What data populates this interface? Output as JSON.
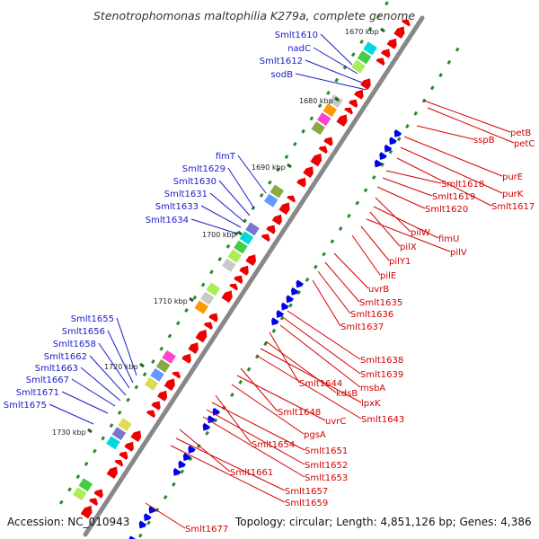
{
  "title": "Stenotrophomonas maltophilia K279a, complete genome",
  "footer": {
    "accession": "Accession: NC_010943",
    "topology": "Topology: circular; Length: 4,851,126 bp; Genes: 4,386"
  },
  "colors": {
    "forward_label": "#1a1acc",
    "reverse_label": "#d40000",
    "forward_gene": "#0000ee",
    "reverse_gene": "#ee0000",
    "backbone": "#888888",
    "tick": "#2a8a2a"
  },
  "kbp_ticks": [
    "1670 kbp",
    "1680 kbp",
    "1690 kbp",
    "1700 kbp",
    "1710 kbp",
    "1720 kbp",
    "1730 kbp"
  ],
  "forward_labels": [
    "Smlt1610",
    "nadC",
    "Smlt1612",
    "sodB",
    "fimT",
    "Smlt1629",
    "Smlt1630",
    "Smlt1631",
    "Smlt1633",
    "Smlt1634",
    "Smlt1655",
    "Smlt1656",
    "Smlt1658",
    "Smlt1662",
    "Smlt1663",
    "Smlt1667",
    "Smlt1671",
    "Smlt1675"
  ],
  "reverse_labels": [
    "petB",
    "petC",
    "sspB",
    "purE",
    "purK",
    "Smlt1617",
    "Smlt1618",
    "Smlt1619",
    "Smlt1620",
    "pilW",
    "fimU",
    "pilX",
    "pilV",
    "pilY1",
    "pilE",
    "uvrB",
    "Smlt1635",
    "Smlt1636",
    "Smlt1637",
    "Smlt1638",
    "Smlt1639",
    "msbA",
    "Smlt1644",
    "kdsB",
    "lpxK",
    "Smlt1643",
    "Smlt1648",
    "uvrC",
    "pgsA",
    "Smlt1654",
    "Smlt1651",
    "Smlt1652",
    "Smlt1653",
    "Smlt1661",
    "Smlt1657",
    "Smlt1659",
    "Smlt1677"
  ]
}
